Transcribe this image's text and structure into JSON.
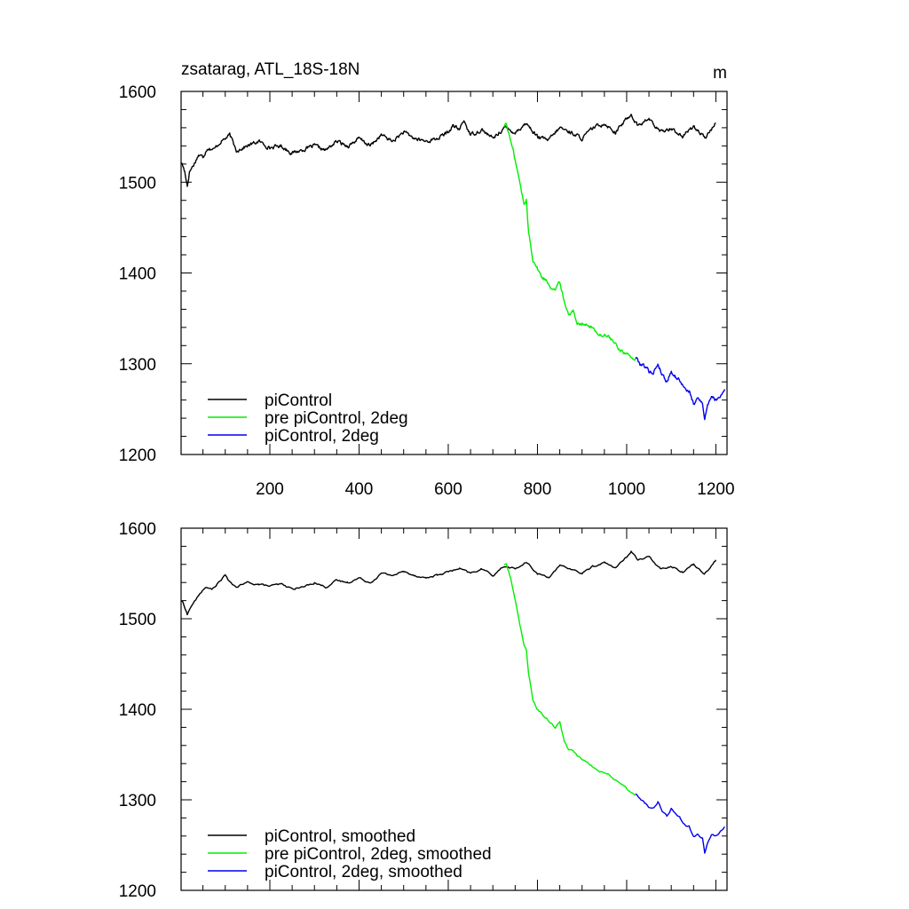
{
  "chart_data": [
    {
      "type": "line",
      "title": "zsatarag, ATL_18S-18N",
      "units": "m",
      "xlabel": "",
      "ylabel": "",
      "xlim": [
        1,
        1225
      ],
      "ylim": [
        1200,
        1600
      ],
      "xticks": [
        200,
        400,
        600,
        800,
        1000,
        1200
      ],
      "xtick_labels": [
        "200",
        "400",
        "600",
        "800",
        "1000",
        "1200"
      ],
      "yticks": [
        1200,
        1300,
        1400,
        1500,
        1600
      ],
      "ytick_labels": [
        "1200",
        "1300",
        "1400",
        "1500",
        "1600"
      ],
      "legend_position": "bottom-left",
      "series": [
        {
          "name": "piControl",
          "color": "#000000",
          "x": [
            1,
            5,
            10,
            15,
            20,
            30,
            40,
            50,
            60,
            75,
            90,
            100,
            110,
            125,
            150,
            175,
            200,
            225,
            250,
            275,
            300,
            325,
            350,
            375,
            400,
            425,
            450,
            475,
            500,
            525,
            550,
            575,
            600,
            610,
            625,
            635,
            650,
            675,
            700,
            725,
            750,
            775,
            800,
            825,
            850,
            875,
            900,
            925,
            950,
            975,
            1000,
            1010,
            1025,
            1050,
            1075,
            1100,
            1125,
            1150,
            1175,
            1200
          ],
          "values": [
            1522,
            1518,
            1510,
            1496,
            1512,
            1520,
            1530,
            1528,
            1538,
            1536,
            1545,
            1548,
            1552,
            1535,
            1540,
            1545,
            1538,
            1540,
            1532,
            1536,
            1540,
            1535,
            1545,
            1540,
            1548,
            1540,
            1552,
            1545,
            1555,
            1548,
            1545,
            1548,
            1555,
            1562,
            1558,
            1568,
            1552,
            1558,
            1548,
            1560,
            1555,
            1565,
            1550,
            1546,
            1560,
            1555,
            1548,
            1560,
            1565,
            1555,
            1570,
            1575,
            1562,
            1570,
            1555,
            1560,
            1550,
            1562,
            1548,
            1565
          ]
        },
        {
          "name": "pre piControl, 2deg",
          "color": "#00ee00",
          "x": [
            725,
            730,
            740,
            750,
            760,
            770,
            775,
            780,
            790,
            800,
            810,
            820,
            830,
            840,
            850,
            860,
            870,
            880,
            890,
            900,
            920,
            940,
            960,
            980,
            1000,
            1020
          ],
          "values": [
            1562,
            1565,
            1545,
            1525,
            1500,
            1475,
            1480,
            1445,
            1415,
            1405,
            1395,
            1392,
            1385,
            1382,
            1390,
            1368,
            1355,
            1358,
            1345,
            1345,
            1340,
            1332,
            1330,
            1318,
            1310,
            1305
          ]
        },
        {
          "name": "piControl, 2deg",
          "color": "#0000ee",
          "x": [
            1020,
            1030,
            1040,
            1050,
            1060,
            1070,
            1080,
            1090,
            1100,
            1110,
            1120,
            1130,
            1140,
            1150,
            1160,
            1170,
            1175,
            1180,
            1190,
            1200,
            1210,
            1220
          ],
          "values": [
            1308,
            1300,
            1298,
            1292,
            1290,
            1300,
            1288,
            1280,
            1292,
            1285,
            1282,
            1272,
            1270,
            1255,
            1262,
            1258,
            1238,
            1252,
            1265,
            1260,
            1265,
            1272
          ]
        }
      ]
    },
    {
      "type": "line",
      "title": "",
      "xlabel": "",
      "ylabel": "",
      "xlim": [
        1,
        1225
      ],
      "ylim": [
        1200,
        1600
      ],
      "xticks": [
        200,
        400,
        600,
        800,
        1000,
        1200
      ],
      "yticks": [
        1200,
        1300,
        1400,
        1500,
        1600
      ],
      "ytick_labels": [
        "1200",
        "1300",
        "1400",
        "1500",
        "1600"
      ],
      "legend_position": "bottom-left",
      "series": [
        {
          "name": "piControl, smoothed",
          "color": "#000000",
          "x": [
            1,
            5,
            10,
            15,
            25,
            40,
            55,
            70,
            85,
            100,
            110,
            125,
            150,
            175,
            200,
            225,
            250,
            275,
            300,
            325,
            350,
            375,
            400,
            425,
            450,
            475,
            500,
            525,
            550,
            575,
            600,
            625,
            650,
            675,
            700,
            725,
            750,
            775,
            800,
            825,
            850,
            875,
            900,
            925,
            950,
            975,
            1000,
            1010,
            1025,
            1050,
            1075,
            1100,
            1125,
            1150,
            1175,
            1200
          ],
          "values": [
            1520,
            1518,
            1512,
            1505,
            1515,
            1525,
            1535,
            1532,
            1540,
            1548,
            1540,
            1535,
            1540,
            1538,
            1536,
            1538,
            1533,
            1535,
            1540,
            1535,
            1542,
            1540,
            1545,
            1540,
            1550,
            1548,
            1552,
            1548,
            1545,
            1548,
            1552,
            1555,
            1550,
            1555,
            1548,
            1558,
            1555,
            1562,
            1550,
            1546,
            1558,
            1555,
            1550,
            1558,
            1562,
            1556,
            1568,
            1575,
            1565,
            1568,
            1556,
            1558,
            1552,
            1560,
            1550,
            1565
          ]
        },
        {
          "name": "pre piControl, 2deg, smoothed",
          "color": "#00ee00",
          "x": [
            725,
            730,
            740,
            750,
            760,
            770,
            775,
            780,
            790,
            800,
            810,
            820,
            830,
            840,
            850,
            860,
            870,
            880,
            890,
            900,
            920,
            940,
            960,
            980,
            1000,
            1020
          ],
          "values": [
            1560,
            1560,
            1545,
            1522,
            1495,
            1470,
            1465,
            1440,
            1410,
            1400,
            1395,
            1390,
            1384,
            1380,
            1386,
            1365,
            1355,
            1355,
            1348,
            1345,
            1338,
            1332,
            1328,
            1320,
            1312,
            1305
          ]
        },
        {
          "name": "piControl, 2deg, smoothed",
          "color": "#0000ee",
          "x": [
            1020,
            1030,
            1040,
            1050,
            1060,
            1070,
            1080,
            1090,
            1100,
            1110,
            1120,
            1130,
            1140,
            1150,
            1160,
            1170,
            1175,
            1180,
            1190,
            1200,
            1210,
            1220
          ],
          "values": [
            1307,
            1302,
            1297,
            1292,
            1292,
            1298,
            1288,
            1282,
            1290,
            1284,
            1280,
            1272,
            1270,
            1258,
            1262,
            1258,
            1242,
            1250,
            1262,
            1260,
            1265,
            1270
          ]
        }
      ]
    }
  ]
}
